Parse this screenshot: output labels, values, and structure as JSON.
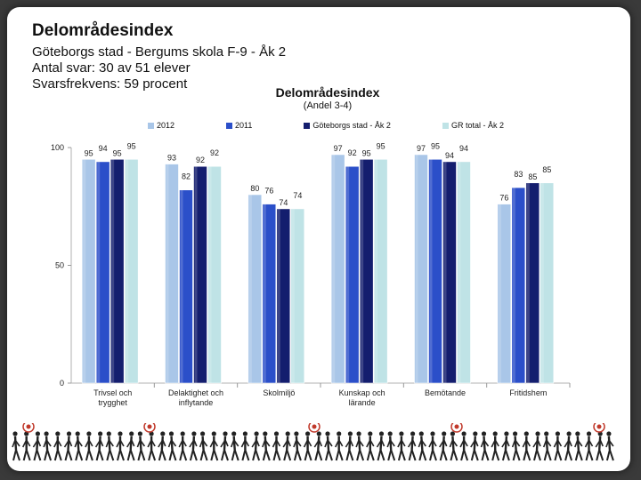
{
  "slide": {
    "title": "Delområdesindex",
    "subtitle_lines": [
      "Göteborgs stad - Bergums skola F-9 - Åk 2",
      "Antal svar: 30 av 51 elever",
      "Svarsfrekvens: 59 procent"
    ]
  },
  "chart_data": {
    "type": "bar",
    "title": "Delområdesindex",
    "subtitle": "(Andel 3-4)",
    "ylim": [
      0,
      100
    ],
    "yticks": [
      0,
      50,
      100
    ],
    "categories": [
      [
        "Trivsel och",
        "trygghet"
      ],
      [
        "Delaktighet och",
        "inflytande"
      ],
      [
        "Skolmiljö"
      ],
      [
        "Kunskap och",
        "lärande"
      ],
      [
        "Bemötande"
      ],
      [
        "Fritidshem"
      ]
    ],
    "series": [
      {
        "name": "2012",
        "color": "#a9c6e8",
        "values": [
          95,
          93,
          80,
          97,
          97,
          76
        ]
      },
      {
        "name": "2011",
        "color": "#2b4fc9",
        "values": [
          94,
          82,
          76,
          92,
          95,
          83
        ]
      },
      {
        "name": "Göteborgs stad - Åk 2",
        "color": "#141e6e",
        "values": [
          95,
          92,
          74,
          95,
          94,
          85
        ]
      },
      {
        "name": "GR total - Åk 2",
        "color": "#bfe3e6",
        "values": [
          95,
          92,
          74,
          95,
          94,
          85
        ]
      }
    ]
  }
}
